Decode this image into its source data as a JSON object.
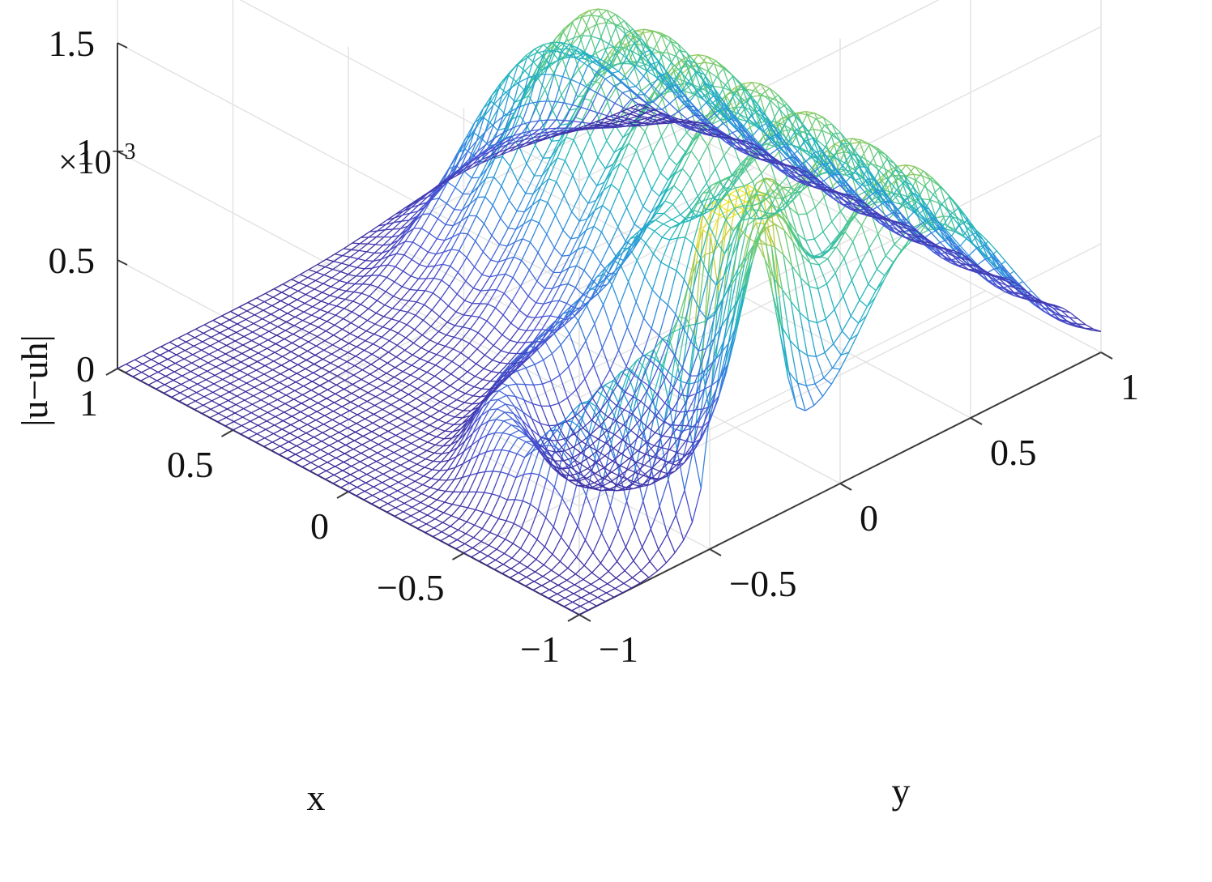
{
  "chart_data": {
    "type": "surface-mesh",
    "xlabel": "x",
    "ylabel": "y",
    "zlabel": "|u−uh|",
    "z_multiplier_label": "×10",
    "z_multiplier_exponent": "−3",
    "xlim": [
      -1,
      1
    ],
    "ylim": [
      -1,
      1
    ],
    "zlim": [
      0,
      1.5
    ],
    "x_ticks": [
      {
        "value": 1,
        "label": "1"
      },
      {
        "value": 0.5,
        "label": "0.5"
      },
      {
        "value": 0,
        "label": "0"
      },
      {
        "value": -0.5,
        "label": "−0.5"
      },
      {
        "value": -1,
        "label": "−1"
      }
    ],
    "y_ticks": [
      {
        "value": 1,
        "label": "1"
      },
      {
        "value": 0.5,
        "label": "0.5"
      },
      {
        "value": 0,
        "label": "0"
      },
      {
        "value": -0.5,
        "label": "−0.5"
      },
      {
        "value": -1,
        "label": "−1"
      }
    ],
    "z_ticks": [
      {
        "value": 0,
        "label": "0"
      },
      {
        "value": 0.5,
        "label": "0.5"
      },
      {
        "value": 1,
        "label": "1"
      },
      {
        "value": 1.5,
        "label": "1.5"
      }
    ],
    "grid": true,
    "colormap": "parula",
    "colormap_stops": [
      "#3d2a9a",
      "#4a55d6",
      "#2f8ee0",
      "#22b7bf",
      "#5fcb82",
      "#c6c83a",
      "#f7e930"
    ],
    "mesh_resolution": 60,
    "surface_features": [
      {
        "name": "ridge-along-x-near-y-0.35",
        "x_range": [
          -1,
          0.8
        ],
        "y_center": 0.35,
        "peak": 1.15
      },
      {
        "name": "ring-around-x--0.5-y--0.35",
        "x_center": -0.5,
        "y_center": -0.35,
        "radius": 0.38,
        "peak": 0.95
      },
      {
        "name": "spike-1",
        "x": -0.98,
        "y": -0.3,
        "peak": 1.45
      },
      {
        "name": "spike-2",
        "x": -0.98,
        "y": -0.42,
        "peak": 1.4
      }
    ]
  }
}
